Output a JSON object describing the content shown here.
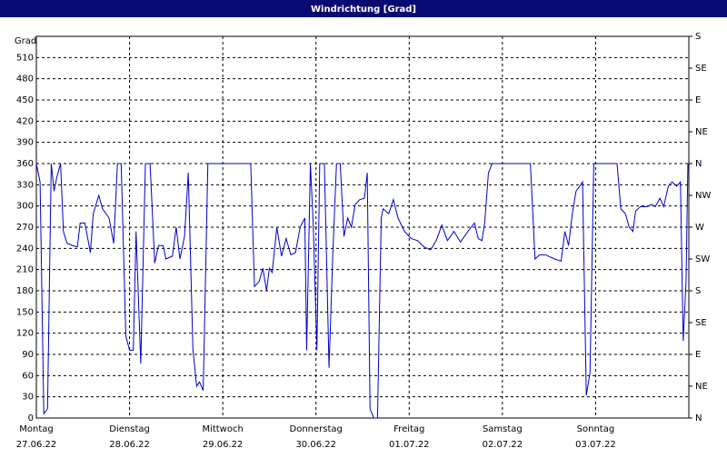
{
  "chart_data": {
    "type": "line",
    "title": "Windrichtung [Grad]",
    "y_label": "Grad",
    "xlim": [
      0,
      7
    ],
    "xticks": [
      {
        "value": 0,
        "label": "Montag"
      },
      {
        "value": 1,
        "label": "Dienstag"
      },
      {
        "value": 2,
        "label": "Mittwoch"
      },
      {
        "value": 3,
        "label": "Donnerstag"
      },
      {
        "value": 4,
        "label": "Freitag"
      },
      {
        "value": 5,
        "label": "Samstag"
      },
      {
        "value": 6,
        "label": "Sonntag"
      }
    ],
    "xtick_dates": [
      "27.06.22",
      "28.06.22",
      "29.06.22",
      "30.06.22",
      "01.07.22",
      "02.07.22",
      "03.07.22"
    ],
    "ylim": [
      0,
      540
    ],
    "yticks": [
      0,
      30,
      60,
      90,
      120,
      150,
      180,
      210,
      240,
      270,
      300,
      330,
      360,
      390,
      420,
      450,
      480,
      510
    ],
    "y2lim": [
      0,
      540
    ],
    "y2ticks": [
      {
        "value": 0,
        "label": "N"
      },
      {
        "value": 45,
        "label": "NE"
      },
      {
        "value": 90,
        "label": "E"
      },
      {
        "value": 135,
        "label": "SE"
      },
      {
        "value": 180,
        "label": "S"
      },
      {
        "value": 225,
        "label": "SW"
      },
      {
        "value": 270,
        "label": "W"
      },
      {
        "value": 315,
        "label": "NW"
      },
      {
        "value": 360,
        "label": "N"
      },
      {
        "value": 405,
        "label": "NE"
      },
      {
        "value": 450,
        "label": "E"
      },
      {
        "value": 495,
        "label": "SE"
      },
      {
        "value": 540,
        "label": "S"
      }
    ],
    "grid": true,
    "series": [
      {
        "color": "#0000cc",
        "x": [
          0,
          0.04,
          0.08,
          0.12,
          0.16,
          0.19,
          0.22,
          0.26,
          0.29,
          0.33,
          0.39,
          0.44,
          0.47,
          0.52,
          0.58,
          0.61,
          0.67,
          0.71,
          0.78,
          0.83,
          0.87,
          0.91,
          0.96,
          1.0,
          1.04,
          1.07,
          1.12,
          1.17,
          1.22,
          1.27,
          1.31,
          1.36,
          1.39,
          1.46,
          1.5,
          1.54,
          1.59,
          1.63,
          1.68,
          1.72,
          1.75,
          1.79,
          1.84,
          2.3,
          2.34,
          2.39,
          2.43,
          2.47,
          2.5,
          2.53,
          2.58,
          2.63,
          2.68,
          2.73,
          2.78,
          2.83,
          2.88,
          2.9,
          2.94,
          2.97,
          3.01,
          3.04,
          3.09,
          3.14,
          3.18,
          3.22,
          3.26,
          3.3,
          3.34,
          3.38,
          3.42,
          3.47,
          3.52,
          3.55,
          3.58,
          3.62,
          3.66,
          3.7,
          3.72,
          3.78,
          3.83,
          3.88,
          3.95,
          4.02,
          4.09,
          4.16,
          4.23,
          4.29,
          4.35,
          4.41,
          4.48,
          4.55,
          4.63,
          4.7,
          4.74,
          4.78,
          4.81,
          4.85,
          4.89,
          5.3,
          5.35,
          5.4,
          5.46,
          5.56,
          5.63,
          5.67,
          5.71,
          5.75,
          5.79,
          5.83,
          5.86,
          5.9,
          5.94,
          5.98,
          6.23,
          6.27,
          6.32,
          6.36,
          6.4,
          6.43,
          6.48,
          6.55,
          6.6,
          6.64,
          6.69,
          6.73,
          6.78,
          6.82,
          6.87,
          6.91,
          6.93,
          6.94,
          6.97,
          6.99
        ],
        "values": [
          360,
          334,
          6,
          13,
          360,
          321,
          341,
          360,
          264,
          247,
          244,
          242,
          276,
          276,
          234,
          289,
          315,
          296,
          283,
          247,
          360,
          360,
          116,
          96,
          96,
          264,
          77,
          360,
          360,
          219,
          244,
          244,
          225,
          229,
          270,
          225,
          257,
          347,
          96,
          45,
          51,
          39,
          360,
          360,
          186,
          193,
          212,
          180,
          212,
          206,
          270,
          229,
          254,
          231,
          234,
          270,
          283,
          96,
          360,
          276,
          96,
          360,
          360,
          71,
          231,
          360,
          360,
          257,
          283,
          270,
          302,
          309,
          311,
          347,
          13,
          0,
          0,
          283,
          296,
          289,
          309,
          283,
          264,
          254,
          251,
          242,
          238,
          251,
          273,
          251,
          264,
          249,
          264,
          276,
          254,
          251,
          276,
          347,
          360,
          360,
          225,
          231,
          231,
          225,
          222,
          264,
          244,
          289,
          321,
          328,
          334,
          32,
          64,
          360,
          360,
          296,
          289,
          270,
          264,
          293,
          299,
          299,
          302,
          299,
          311,
          299,
          328,
          334,
          328,
          334,
          180,
          109,
          193,
          360
        ]
      }
    ]
  }
}
